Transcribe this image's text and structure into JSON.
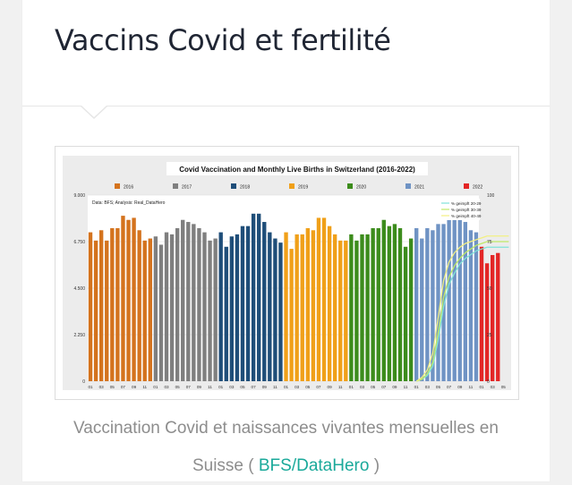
{
  "post": {
    "title": "Vaccins Covid et fertilité",
    "caption_text": "Vaccination Covid et naissances vivantes mensuelles en Suisse (",
    "caption_link": "BFS/DataHero",
    "caption_close": ")"
  },
  "chart_data": {
    "type": "bar",
    "title": "Covid Vaccination and Monthly Live Births in Switzerland (2016-2022)",
    "annotation": "Data: BFS; Analysis: Real_DataHero",
    "ylim_left": [
      0,
      9000
    ],
    "yticks_left": [
      "0",
      "2.250",
      "4.500",
      "6.750",
      "9.000"
    ],
    "ytick_values_left": [
      0,
      2250,
      4500,
      6750,
      9000
    ],
    "ylim_right": [
      0,
      100
    ],
    "yticks_right": [
      "0",
      "25",
      "50",
      "75",
      "100"
    ],
    "ytick_values_right": [
      0,
      25,
      50,
      75,
      100
    ],
    "xtick_labels": [
      "01",
      "03",
      "05",
      "07",
      "09",
      "11",
      "01",
      "03",
      "05",
      "07",
      "09",
      "11",
      "01",
      "03",
      "05",
      "07",
      "09",
      "11",
      "01",
      "03",
      "05",
      "07",
      "09",
      "11",
      "01",
      "03",
      "05",
      "07",
      "09",
      "11",
      "01",
      "03",
      "05",
      "07",
      "09",
      "11",
      "01",
      "03",
      "05",
      "07",
      "09",
      "11"
    ],
    "bar_series": [
      {
        "name": "2016",
        "color": "#d4731e",
        "values": [
          7200,
          6800,
          7300,
          6800,
          7400,
          7400,
          8000,
          7800,
          7900,
          7300,
          6800,
          6900
        ]
      },
      {
        "name": "2017",
        "color": "#7f7f7f",
        "values": [
          7000,
          6600,
          7200,
          7100,
          7400,
          7800,
          7700,
          7600,
          7400,
          7200,
          6800,
          6900
        ]
      },
      {
        "name": "2018",
        "color": "#1f4e79",
        "values": [
          7200,
          6500,
          7000,
          7100,
          7500,
          7500,
          8100,
          8100,
          7700,
          7200,
          6900,
          6700
        ]
      },
      {
        "name": "2019",
        "color": "#f0a019",
        "values": [
          7200,
          6400,
          7100,
          7100,
          7400,
          7300,
          7900,
          7900,
          7500,
          7100,
          6800,
          6800
        ]
      },
      {
        "name": "2020",
        "color": "#3c8c1c",
        "values": [
          7100,
          6800,
          7100,
          7100,
          7400,
          7400,
          7800,
          7500,
          7600,
          7400,
          6500,
          6900
        ]
      },
      {
        "name": "2021",
        "color": "#6f93c4",
        "values": [
          7400,
          6900,
          7400,
          7300,
          7600,
          7600,
          8000,
          7900,
          8000,
          7700,
          7300,
          7200
        ]
      },
      {
        "name": "2022",
        "color": "#e32626",
        "values": [
          6500,
          5700,
          6100,
          6200
        ]
      }
    ],
    "line_series": [
      {
        "name": "% geimpft 20-29",
        "color": "#7fe3d8",
        "x_start_index": 60,
        "values": [
          0,
          1,
          3,
          8,
          22,
          40,
          52,
          58,
          63,
          66,
          68,
          70,
          71,
          72,
          72,
          72,
          72,
          72
        ]
      },
      {
        "name": "% geimpft 30-39",
        "color": "#bfe866",
        "x_start_index": 60,
        "values": [
          0,
          1,
          4,
          10,
          26,
          45,
          56,
          62,
          66,
          69,
          71,
          73,
          74,
          75,
          75,
          75,
          75,
          75
        ]
      },
      {
        "name": "% geimpft 40-49",
        "color": "#f2ef82",
        "x_start_index": 60,
        "values": [
          0,
          2,
          6,
          15,
          34,
          54,
          64,
          69,
          72,
          74,
          75,
          76,
          77,
          78,
          78,
          78,
          78,
          78
        ]
      }
    ]
  }
}
